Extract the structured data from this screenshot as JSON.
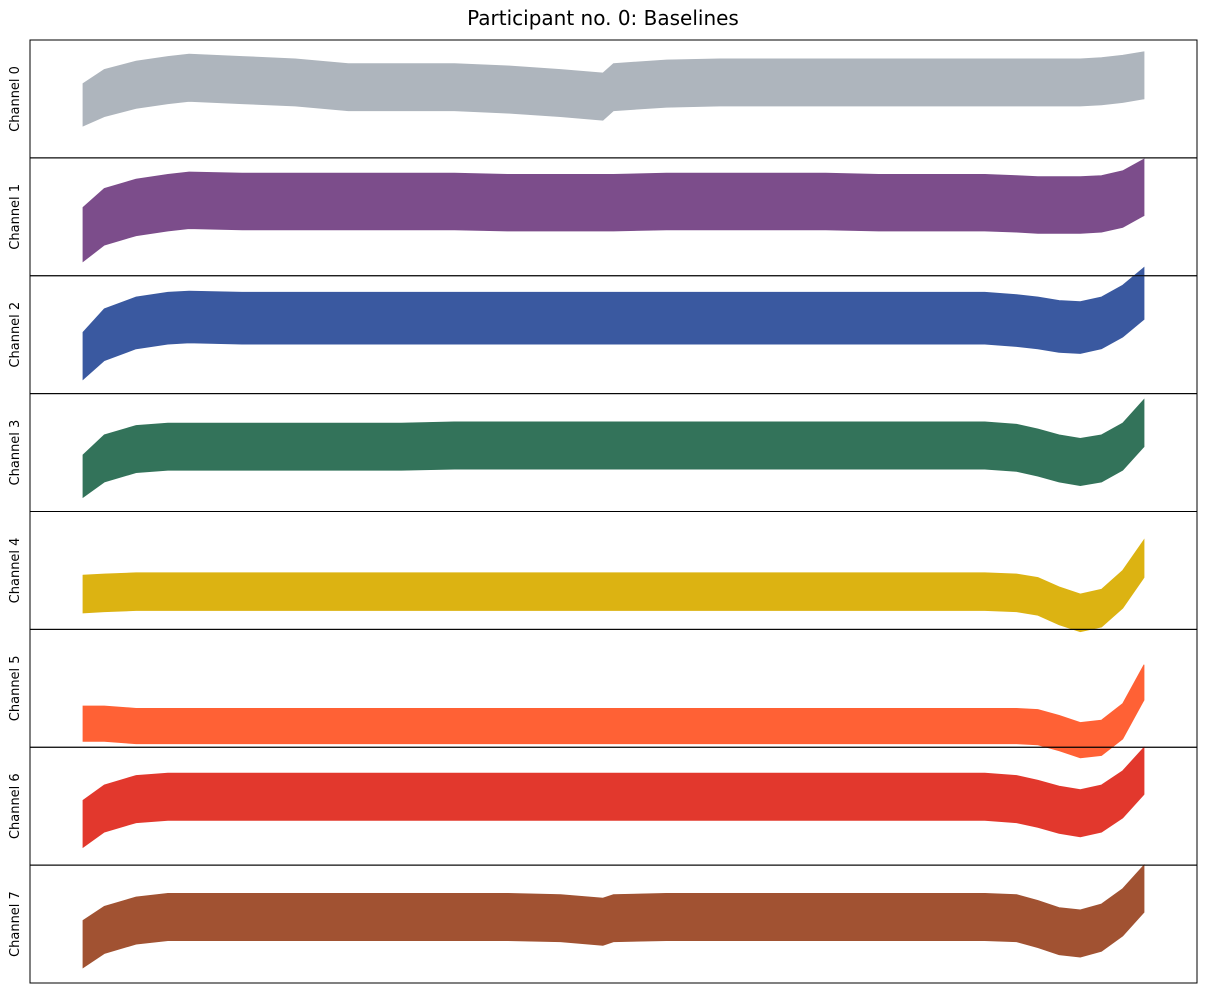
{
  "chart_data": {
    "type": "area",
    "title": "Participant no. 0: Baselines",
    "xlabel": "",
    "ylabel": "",
    "xticks": false,
    "yticks": false,
    "x": [
      0.0,
      0.02,
      0.05,
      0.08,
      0.1,
      0.15,
      0.2,
      0.25,
      0.3,
      0.35,
      0.4,
      0.45,
      0.49,
      0.5,
      0.55,
      0.6,
      0.65,
      0.7,
      0.75,
      0.8,
      0.85,
      0.88,
      0.9,
      0.92,
      0.94,
      0.96,
      0.98,
      1.0
    ],
    "xlim": [
      -0.05,
      1.05
    ],
    "panels": [
      {
        "label": "Channel 0",
        "color": "#aeb5bd",
        "ylim": [
          0,
          1
        ],
        "center": [
          0.45,
          0.55,
          0.62,
          0.66,
          0.68,
          0.66,
          0.64,
          0.6,
          0.6,
          0.6,
          0.58,
          0.55,
          0.52,
          0.6,
          0.63,
          0.64,
          0.64,
          0.64,
          0.64,
          0.64,
          0.64,
          0.64,
          0.64,
          0.64,
          0.64,
          0.65,
          0.67,
          0.7
        ],
        "half_width": [
          0.18,
          0.2,
          0.2,
          0.2,
          0.2,
          0.2,
          0.2,
          0.2,
          0.2,
          0.2,
          0.2,
          0.2,
          0.2,
          0.2,
          0.2,
          0.2,
          0.2,
          0.2,
          0.2,
          0.2,
          0.2,
          0.2,
          0.2,
          0.2,
          0.2,
          0.2,
          0.2,
          0.2
        ]
      },
      {
        "label": "Channel 1",
        "color": "#7c4d8b",
        "ylim": [
          0,
          1
        ],
        "center": [
          0.35,
          0.5,
          0.58,
          0.62,
          0.64,
          0.63,
          0.63,
          0.63,
          0.63,
          0.63,
          0.62,
          0.62,
          0.62,
          0.62,
          0.63,
          0.63,
          0.63,
          0.63,
          0.62,
          0.62,
          0.62,
          0.61,
          0.6,
          0.6,
          0.6,
          0.61,
          0.65,
          0.75
        ],
        "half_width": [
          0.23,
          0.24,
          0.24,
          0.24,
          0.24,
          0.24,
          0.24,
          0.24,
          0.24,
          0.24,
          0.24,
          0.24,
          0.24,
          0.24,
          0.24,
          0.24,
          0.24,
          0.24,
          0.24,
          0.24,
          0.24,
          0.24,
          0.24,
          0.24,
          0.24,
          0.24,
          0.24,
          0.24
        ]
      },
      {
        "label": "Channel 2",
        "color": "#3a59a0",
        "ylim": [
          0,
          1
        ],
        "center": [
          0.32,
          0.5,
          0.6,
          0.64,
          0.65,
          0.64,
          0.64,
          0.64,
          0.64,
          0.64,
          0.64,
          0.64,
          0.64,
          0.64,
          0.64,
          0.64,
          0.64,
          0.64,
          0.64,
          0.64,
          0.64,
          0.62,
          0.6,
          0.57,
          0.56,
          0.6,
          0.7,
          0.85
        ],
        "half_width": [
          0.2,
          0.22,
          0.22,
          0.22,
          0.22,
          0.22,
          0.22,
          0.22,
          0.22,
          0.22,
          0.22,
          0.22,
          0.22,
          0.22,
          0.22,
          0.22,
          0.22,
          0.22,
          0.22,
          0.22,
          0.22,
          0.22,
          0.22,
          0.22,
          0.22,
          0.22,
          0.22,
          0.22
        ]
      },
      {
        "label": "Channel 3",
        "color": "#33735a",
        "ylim": [
          0,
          1
        ],
        "center": [
          0.3,
          0.45,
          0.53,
          0.55,
          0.55,
          0.55,
          0.55,
          0.55,
          0.55,
          0.56,
          0.56,
          0.56,
          0.56,
          0.56,
          0.56,
          0.56,
          0.56,
          0.56,
          0.56,
          0.56,
          0.56,
          0.54,
          0.5,
          0.45,
          0.42,
          0.45,
          0.55,
          0.75
        ],
        "half_width": [
          0.18,
          0.2,
          0.2,
          0.2,
          0.2,
          0.2,
          0.2,
          0.2,
          0.2,
          0.2,
          0.2,
          0.2,
          0.2,
          0.2,
          0.2,
          0.2,
          0.2,
          0.2,
          0.2,
          0.2,
          0.2,
          0.2,
          0.2,
          0.2,
          0.2,
          0.2,
          0.2,
          0.2
        ]
      },
      {
        "label": "Channel 4",
        "color": "#dcb312",
        "ylim": [
          0,
          1
        ],
        "center": [
          0.3,
          0.31,
          0.32,
          0.32,
          0.32,
          0.32,
          0.32,
          0.32,
          0.32,
          0.32,
          0.32,
          0.32,
          0.32,
          0.32,
          0.32,
          0.32,
          0.32,
          0.32,
          0.32,
          0.32,
          0.32,
          0.31,
          0.28,
          0.2,
          0.14,
          0.18,
          0.34,
          0.6
        ],
        "half_width": [
          0.16,
          0.16,
          0.16,
          0.16,
          0.16,
          0.16,
          0.16,
          0.16,
          0.16,
          0.16,
          0.16,
          0.16,
          0.16,
          0.16,
          0.16,
          0.16,
          0.16,
          0.16,
          0.16,
          0.16,
          0.16,
          0.16,
          0.16,
          0.16,
          0.16,
          0.16,
          0.16,
          0.16
        ]
      },
      {
        "label": "Channel 5",
        "color": "#ff6135",
        "ylim": [
          0,
          1
        ],
        "center": [
          0.2,
          0.2,
          0.18,
          0.18,
          0.18,
          0.18,
          0.18,
          0.18,
          0.18,
          0.18,
          0.18,
          0.18,
          0.18,
          0.18,
          0.18,
          0.18,
          0.18,
          0.18,
          0.18,
          0.18,
          0.18,
          0.18,
          0.17,
          0.12,
          0.06,
          0.08,
          0.22,
          0.55
        ],
        "half_width": [
          0.15,
          0.15,
          0.15,
          0.15,
          0.15,
          0.15,
          0.15,
          0.15,
          0.15,
          0.15,
          0.15,
          0.15,
          0.15,
          0.15,
          0.15,
          0.15,
          0.15,
          0.15,
          0.15,
          0.15,
          0.15,
          0.15,
          0.15,
          0.15,
          0.15,
          0.15,
          0.15,
          0.15
        ]
      },
      {
        "label": "Channel 6",
        "color": "#e2382d",
        "ylim": [
          0,
          1
        ],
        "center": [
          0.35,
          0.48,
          0.56,
          0.58,
          0.58,
          0.58,
          0.58,
          0.58,
          0.58,
          0.58,
          0.58,
          0.58,
          0.58,
          0.58,
          0.58,
          0.58,
          0.58,
          0.58,
          0.58,
          0.58,
          0.58,
          0.56,
          0.52,
          0.47,
          0.44,
          0.48,
          0.6,
          0.8
        ],
        "half_width": [
          0.2,
          0.2,
          0.2,
          0.2,
          0.2,
          0.2,
          0.2,
          0.2,
          0.2,
          0.2,
          0.2,
          0.2,
          0.2,
          0.2,
          0.2,
          0.2,
          0.2,
          0.2,
          0.2,
          0.2,
          0.2,
          0.2,
          0.2,
          0.2,
          0.2,
          0.2,
          0.2,
          0.2
        ]
      },
      {
        "label": "Channel 7",
        "color": "#a15232",
        "ylim": [
          0,
          1
        ],
        "center": [
          0.33,
          0.45,
          0.53,
          0.56,
          0.56,
          0.56,
          0.56,
          0.56,
          0.56,
          0.56,
          0.56,
          0.55,
          0.52,
          0.55,
          0.56,
          0.56,
          0.56,
          0.56,
          0.56,
          0.56,
          0.56,
          0.55,
          0.5,
          0.44,
          0.42,
          0.47,
          0.6,
          0.8
        ],
        "half_width": [
          0.2,
          0.2,
          0.2,
          0.2,
          0.2,
          0.2,
          0.2,
          0.2,
          0.2,
          0.2,
          0.2,
          0.2,
          0.2,
          0.2,
          0.2,
          0.2,
          0.2,
          0.2,
          0.2,
          0.2,
          0.2,
          0.2,
          0.2,
          0.2,
          0.2,
          0.2,
          0.2,
          0.2
        ]
      }
    ]
  }
}
